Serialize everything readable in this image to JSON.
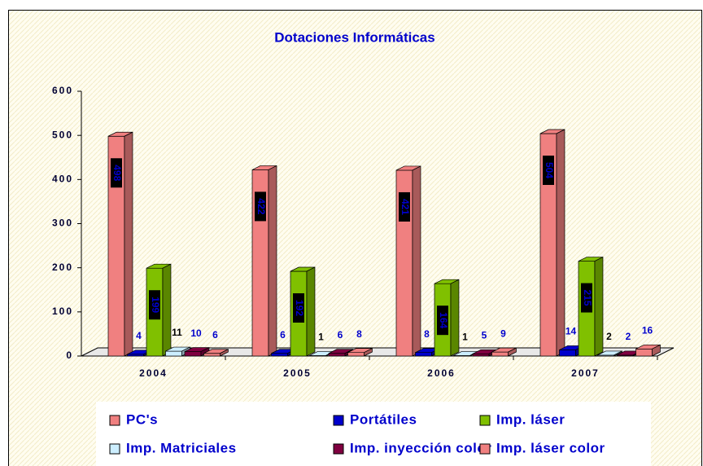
{
  "chart_data": {
    "type": "bar3d",
    "title": "Dotaciones Informáticas",
    "categories": [
      "2004",
      "2005",
      "2006",
      "2007"
    ],
    "series": [
      {
        "name": "PC's",
        "color": "#f08080",
        "values": [
          498,
          422,
          421,
          504
        ]
      },
      {
        "name": "Portátiles",
        "color": "#0000cc",
        "values": [
          4,
          6,
          8,
          14
        ]
      },
      {
        "name": "Imp. láser",
        "color": "#80c000",
        "values": [
          199,
          192,
          164,
          215
        ]
      },
      {
        "name": "Imp. Matriciales",
        "color": "#cceeff",
        "values": [
          11,
          1,
          1,
          2
        ]
      },
      {
        "name": "Imp. inyección color",
        "color": "#800040",
        "values": [
          10,
          6,
          5,
          2
        ]
      },
      {
        "name": "Imp. láser color",
        "color": "#f08080",
        "values": [
          6,
          8,
          9,
          16
        ]
      }
    ],
    "ylim": [
      0,
      600
    ],
    "yticks": [
      0,
      100,
      200,
      300,
      400,
      500,
      600
    ]
  }
}
